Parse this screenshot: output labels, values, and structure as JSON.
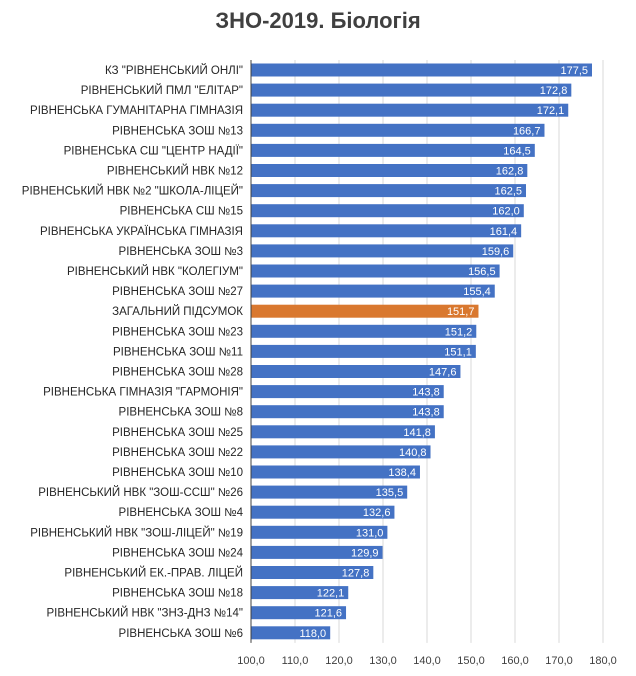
{
  "chart_data": {
    "type": "bar",
    "orientation": "horizontal",
    "title": "ЗНО-2019. Біологія",
    "categories": [
      "КЗ \"РІВНЕНСЬКИЙ ОНЛІ\"",
      "РІВНЕНСЬКИЙ ПМЛ \"ЕЛІТАР\"",
      "РІВНЕНСЬКА ГУМАНІТАРНА ГІМНАЗІЯ",
      "РІВНЕНСЬКА ЗОШ №13",
      "РІВНЕНСЬКА СШ \"ЦЕНТР НАДІЇ\"",
      "РІВНЕНСЬКИЙ НВК №12",
      "РІВНЕНСЬКИЙ НВК №2 \"ШКОЛА-ЛІЦЕЙ\"",
      "РІВНЕНСЬКА СШ №15",
      "РІВНЕНСЬКА УКРАЇНСЬКА ГІМНАЗІЯ",
      "РІВНЕНСЬКА ЗОШ №3",
      "РІВНЕНСЬКИЙ НВК \"КОЛЕГІУМ\"",
      "РІВНЕНСЬКА ЗОШ №27",
      "ЗАГАЛЬНИЙ ПІДСУМОК",
      "РІВНЕНСЬКА ЗОШ №23",
      "РІВНЕНСЬКА ЗОШ №11",
      "РІВНЕНСЬКА ЗОШ №28",
      "РІВНЕНСЬКА ГІМНАЗІЯ \"ГАРМОНІЯ\"",
      "РІВНЕНСЬКА ЗОШ №8",
      "РІВНЕНСЬКА ЗОШ №25",
      "РІВНЕНСЬКА ЗОШ №22",
      "РІВНЕНСЬКА ЗОШ №10",
      "РІВНЕНСЬКИЙ НВК \"ЗОШ-ССШ\" №26",
      "РІВНЕНСЬКА ЗОШ №4",
      "РІВНЕНСЬКИЙ НВК \"ЗОШ-ЛІЦЕЙ\" №19",
      "РІВНЕНСЬКА ЗОШ №24",
      "РІВНЕНСЬКИЙ ЕК.-ПРАВ. ЛІЦЕЙ",
      "РІВНЕНСЬКА ЗОШ №18",
      "РІВНЕНСЬКИЙ НВК \"ЗНЗ-ДНЗ №14\"",
      "РІВНЕНСЬКА ЗОШ №6"
    ],
    "values": [
      177.5,
      172.8,
      172.1,
      166.7,
      164.5,
      162.8,
      162.5,
      162.0,
      161.4,
      159.6,
      156.5,
      155.4,
      151.7,
      151.2,
      151.1,
      147.6,
      143.8,
      143.8,
      141.8,
      140.8,
      138.4,
      135.5,
      132.6,
      131.0,
      129.9,
      127.8,
      122.1,
      121.6,
      118.0
    ],
    "value_labels": [
      "177,5",
      "172,8",
      "172,1",
      "166,7",
      "164,5",
      "162,8",
      "162,5",
      "162,0",
      "161,4",
      "159,6",
      "156,5",
      "155,4",
      "151,7",
      "151,2",
      "151,1",
      "147,6",
      "143,8",
      "143,8",
      "141,8",
      "140,8",
      "138,4",
      "135,5",
      "132,6",
      "131,0",
      "129,9",
      "127,8",
      "122,1",
      "121,6",
      "118,0"
    ],
    "highlight_category": "ЗАГАЛЬНИЙ ПІДСУМОК",
    "xlim": [
      100,
      180
    ],
    "xticks": [
      "100,0",
      "110,0",
      "120,0",
      "130,0",
      "140,0",
      "150,0",
      "160,0",
      "170,0",
      "180,0"
    ],
    "grid": true,
    "legend": "none",
    "colors": {
      "bar": "#4472c4",
      "highlight": "#d9782f",
      "grid": "#d9d9d9",
      "axis": "#404040"
    }
  }
}
